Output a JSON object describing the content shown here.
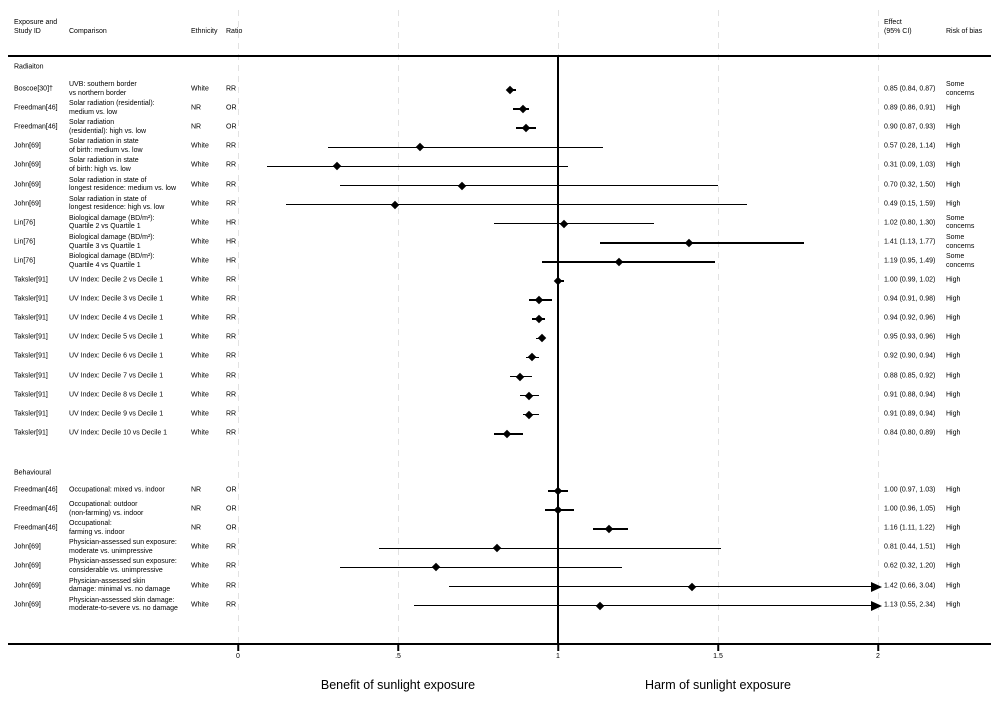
{
  "chart_data": {
    "type": "forest",
    "columns": {
      "study": "Exposure and\nStudy ID",
      "comparison": "Comparison",
      "ethnicity": "Ethnicity",
      "ratio": "Ratio",
      "effect": "Effect\n(95% CI)",
      "risk": "Risk of bias"
    },
    "x_axis": {
      "ticks": [
        0,
        0.5,
        1,
        1.5,
        2
      ],
      "tick_labels": [
        "0",
        ".5",
        "1",
        "1.5",
        "2"
      ],
      "reference_line": 1,
      "range": [
        0,
        2
      ],
      "benefit_label": "Benefit of sunlight exposure",
      "harm_label": "Harm of sunlight exposure"
    },
    "colors": {
      "ink": "#000000",
      "grid": "#e2e2e2",
      "background": "#ffffff"
    },
    "sections": [
      {
        "label": "Radiaiton",
        "rows": [
          {
            "study": "Boscoe[30]†",
            "comparison": "UVB: southern border\nvs northern border",
            "ethnicity": "White",
            "ratio": "RR",
            "est": 0.85,
            "lo": 0.84,
            "hi": 0.87,
            "effect_label": "0.85 (0.84, 0.87)",
            "risk": "Some concerns",
            "arrow": false
          },
          {
            "study": "Freedman[46]",
            "comparison": "Solar radiation (residential):\nmedium vs. low",
            "ethnicity": "NR",
            "ratio": "OR",
            "est": 0.89,
            "lo": 0.86,
            "hi": 0.91,
            "effect_label": "0.89 (0.86, 0.91)",
            "risk": "High",
            "arrow": false
          },
          {
            "study": "Freedman[46]",
            "comparison": "Solar radiation\n(residential): high vs. low",
            "ethnicity": "NR",
            "ratio": "OR",
            "est": 0.9,
            "lo": 0.87,
            "hi": 0.93,
            "effect_label": "0.90 (0.87, 0.93)",
            "risk": "High",
            "arrow": false
          },
          {
            "study": "John[69]",
            "comparison": "Solar radiation in state\nof birth: medium vs. low",
            "ethnicity": "White",
            "ratio": "RR",
            "est": 0.57,
            "lo": 0.28,
            "hi": 1.14,
            "effect_label": "0.57 (0.28, 1.14)",
            "risk": "High",
            "arrow": false
          },
          {
            "study": "John[69]",
            "comparison": "Solar radiation in state\nof birth: high vs. low",
            "ethnicity": "White",
            "ratio": "RR",
            "est": 0.31,
            "lo": 0.09,
            "hi": 1.03,
            "effect_label": "0.31 (0.09, 1.03)",
            "risk": "High",
            "arrow": false
          },
          {
            "study": "John[69]",
            "comparison": "Solar radiation in state of\nlongest residence: medium vs. low",
            "ethnicity": "White",
            "ratio": "RR",
            "est": 0.7,
            "lo": 0.32,
            "hi": 1.5,
            "effect_label": "0.70 (0.32, 1.50)",
            "risk": "High",
            "arrow": false
          },
          {
            "study": "John[69]",
            "comparison": "Solar radiation in state of\nlongest residence: high vs. low",
            "ethnicity": "White",
            "ratio": "RR",
            "est": 0.49,
            "lo": 0.15,
            "hi": 1.59,
            "effect_label": "0.49 (0.15, 1.59)",
            "risk": "High",
            "arrow": false
          },
          {
            "study": "Lin[76]",
            "comparison": "Biological damage (BD/m²):\nQuartile 2 vs Quartile 1",
            "ethnicity": "White",
            "ratio": "HR",
            "est": 1.02,
            "lo": 0.8,
            "hi": 1.3,
            "effect_label": "1.02 (0.80, 1.30)",
            "risk": "Some concerns",
            "arrow": false
          },
          {
            "study": "Lin[76]",
            "comparison": "Biological damage (BD/m²):\nQuartile 3 vs Quartile 1",
            "ethnicity": "White",
            "ratio": "HR",
            "est": 1.41,
            "lo": 1.13,
            "hi": 1.77,
            "effect_label": "1.41 (1.13, 1.77)",
            "risk": "Some concerns",
            "arrow": false
          },
          {
            "study": "Lin[76]",
            "comparison": "Biological damage (BD/m²):\nQuartile 4 vs Quartile 1",
            "ethnicity": "White",
            "ratio": "HR",
            "est": 1.19,
            "lo": 0.95,
            "hi": 1.49,
            "effect_label": "1.19 (0.95, 1.49)",
            "risk": "Some concerns",
            "arrow": false
          },
          {
            "study": "Taksler[91]",
            "comparison": "UV Index: Decile 2 vs Decile 1",
            "ethnicity": "White",
            "ratio": "RR",
            "est": 1.0,
            "lo": 0.99,
            "hi": 1.02,
            "effect_label": "1.00 (0.99, 1.02)",
            "risk": "High",
            "arrow": false
          },
          {
            "study": "Taksler[91]",
            "comparison": "UV Index: Decile 3 vs Decile 1",
            "ethnicity": "White",
            "ratio": "RR",
            "est": 0.94,
            "lo": 0.91,
            "hi": 0.98,
            "effect_label": "0.94 (0.91, 0.98)",
            "risk": "High",
            "arrow": false
          },
          {
            "study": "Taksler[91]",
            "comparison": "UV Index: Decile 4 vs Decile 1",
            "ethnicity": "White",
            "ratio": "RR",
            "est": 0.94,
            "lo": 0.92,
            "hi": 0.96,
            "effect_label": "0.94 (0.92, 0.96)",
            "risk": "High",
            "arrow": false
          },
          {
            "study": "Taksler[91]",
            "comparison": "UV Index: Decile 5 vs Decile 1",
            "ethnicity": "White",
            "ratio": "RR",
            "est": 0.95,
            "lo": 0.93,
            "hi": 0.96,
            "effect_label": "0.95 (0.93, 0.96)",
            "risk": "High",
            "arrow": false
          },
          {
            "study": "Taksler[91]",
            "comparison": "UV Index: Decile 6 vs Decile 1",
            "ethnicity": "White",
            "ratio": "RR",
            "est": 0.92,
            "lo": 0.9,
            "hi": 0.94,
            "effect_label": "0.92 (0.90, 0.94)",
            "risk": "High",
            "arrow": false
          },
          {
            "study": "Taksler[91]",
            "comparison": "UV Index: Decile 7 vs Decile 1",
            "ethnicity": "White",
            "ratio": "RR",
            "est": 0.88,
            "lo": 0.85,
            "hi": 0.92,
            "effect_label": "0.88 (0.85, 0.92)",
            "risk": "High",
            "arrow": false
          },
          {
            "study": "Taksler[91]",
            "comparison": "UV Index: Decile 8 vs Decile 1",
            "ethnicity": "White",
            "ratio": "RR",
            "est": 0.91,
            "lo": 0.88,
            "hi": 0.94,
            "effect_label": "0.91 (0.88, 0.94)",
            "risk": "High",
            "arrow": false
          },
          {
            "study": "Taksler[91]",
            "comparison": "UV Index: Decile 9 vs Decile 1",
            "ethnicity": "White",
            "ratio": "RR",
            "est": 0.91,
            "lo": 0.89,
            "hi": 0.94,
            "effect_label": "0.91 (0.89, 0.94)",
            "risk": "High",
            "arrow": false
          },
          {
            "study": "Taksler[91]",
            "comparison": "UV Index: Decile 10 vs Decile 1",
            "ethnicity": "White",
            "ratio": "RR",
            "est": 0.84,
            "lo": 0.8,
            "hi": 0.89,
            "effect_label": "0.84 (0.80, 0.89)",
            "risk": "High",
            "arrow": false
          }
        ]
      },
      {
        "label": "Behavioural",
        "rows": [
          {
            "study": "Freedman[46]",
            "comparison": "Occupational: mixed vs. indoor",
            "ethnicity": "NR",
            "ratio": "OR",
            "est": 1.0,
            "lo": 0.97,
            "hi": 1.03,
            "effect_label": "1.00 (0.97, 1.03)",
            "risk": "High",
            "arrow": false
          },
          {
            "study": "Freedman[46]",
            "comparison": "Occupational: outdoor\n(non-farming) vs. indoor",
            "ethnicity": "NR",
            "ratio": "OR",
            "est": 1.0,
            "lo": 0.96,
            "hi": 1.05,
            "effect_label": "1.00 (0.96, 1.05)",
            "risk": "High",
            "arrow": false
          },
          {
            "study": "Freedman[46]",
            "comparison": "Occupational:\nfarming vs. indoor",
            "ethnicity": "NR",
            "ratio": "OR",
            "est": 1.16,
            "lo": 1.11,
            "hi": 1.22,
            "effect_label": "1.16 (1.11, 1.22)",
            "risk": "High",
            "arrow": false
          },
          {
            "study": "John[69]",
            "comparison": "Physician-assessed sun exposure:\nmoderate vs. unimpressive",
            "ethnicity": "White",
            "ratio": "RR",
            "est": 0.81,
            "lo": 0.44,
            "hi": 1.51,
            "effect_label": "0.81 (0.44, 1.51)",
            "risk": "High",
            "arrow": false
          },
          {
            "study": "John[69]",
            "comparison": "Physician-assessed sun exposure:\nconsiderable vs. unimpressive",
            "ethnicity": "White",
            "ratio": "RR",
            "est": 0.62,
            "lo": 0.32,
            "hi": 1.2,
            "effect_label": "0.62 (0.32, 1.20)",
            "risk": "High",
            "arrow": false
          },
          {
            "study": "John[69]",
            "comparison": "Physician-assessed skin\ndamage: minimal vs. no damage",
            "ethnicity": "White",
            "ratio": "RR",
            "est": 1.42,
            "lo": 0.66,
            "hi": 3.04,
            "effect_label": "1.42 (0.66, 3.04)",
            "risk": "High",
            "arrow": true
          },
          {
            "study": "John[69]",
            "comparison": "Physician-assessed skin damage:\nmoderate-to-severe vs. no damage",
            "ethnicity": "White",
            "ratio": "RR",
            "est": 1.13,
            "lo": 0.55,
            "hi": 2.34,
            "effect_label": "1.13 (0.55, 2.34)",
            "risk": "High",
            "arrow": true
          }
        ]
      }
    ]
  }
}
